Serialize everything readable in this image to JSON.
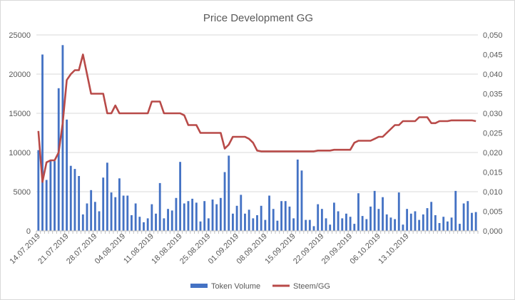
{
  "chart_data": {
    "type": "bar",
    "title": "Price Development GG",
    "xlabel": "",
    "ylabel": "",
    "ylim": [
      0,
      25000
    ],
    "y2lim": [
      0,
      0.05
    ],
    "y_ticks": [
      "0",
      "5000",
      "10000",
      "15000",
      "20000",
      "25000"
    ],
    "y2_ticks": [
      "0,000",
      "0,005",
      "0,010",
      "0,015",
      "0,020",
      "0,025",
      "0,030",
      "0,035",
      "0,040",
      "0,045",
      "0,050"
    ],
    "x_tick_labels": [
      "14.07.2019",
      "21.07.2019",
      "28.07.2019",
      "04.08.2019",
      "11.08.2019",
      "18.08.2019",
      "25.08.2019",
      "01.09.2019",
      "08.09.2019",
      "15.09.2019",
      "22.09.2019",
      "29.09.2019",
      "06.10.2019",
      "13.10.2019"
    ],
    "x_tick_every": 7,
    "start_date": "14.07.2019",
    "grid": true,
    "legend_position": "bottom",
    "colors": {
      "bars": "#4472c4",
      "line": "#b84a48",
      "grid": "#d9d9d9",
      "axis": "#bfbfbf",
      "text": "#595959"
    },
    "series": [
      {
        "name": "Token Volume",
        "kind": "bar",
        "axis": "left",
        "values": [
          10300,
          22500,
          6500,
          9000,
          8900,
          18200,
          23700,
          14200,
          8300,
          7900,
          7000,
          2100,
          3500,
          5200,
          3700,
          2500,
          6800,
          8700,
          4900,
          4300,
          6700,
          4500,
          4500,
          2000,
          3500,
          1800,
          1100,
          1600,
          3400,
          2200,
          6100,
          1600,
          2800,
          2600,
          4200,
          8800,
          3500,
          3800,
          4100,
          3600,
          1200,
          3800,
          1600,
          4000,
          3400,
          4200,
          7500,
          9600,
          2200,
          3200,
          4600,
          2200,
          2700,
          1600,
          2000,
          3200,
          1400,
          4500,
          2800,
          1300,
          3800,
          3800,
          3100,
          1600,
          9100,
          7700,
          1400,
          1400,
          600,
          3400,
          2800,
          1600,
          800,
          3600,
          2500,
          1600,
          2200,
          1800,
          900,
          4800,
          1900,
          1500,
          3100,
          5100,
          2800,
          4300,
          2100,
          1700,
          1500,
          4900,
          800,
          2800,
          2200,
          2500,
          1400,
          2100,
          2900,
          3700,
          2000,
          1000,
          1800,
          1200,
          1700,
          5100,
          900,
          3500,
          3800,
          2300,
          2400
        ]
      },
      {
        "name": "Steem/GG",
        "kind": "line",
        "axis": "right",
        "values": [
          0.0255,
          0.0125,
          0.0175,
          0.018,
          0.018,
          0.02,
          0.0275,
          0.0385,
          0.04,
          0.041,
          0.041,
          0.045,
          0.04,
          0.035,
          0.035,
          0.035,
          0.035,
          0.03,
          0.03,
          0.032,
          0.03,
          0.03,
          0.03,
          0.03,
          0.03,
          0.03,
          0.03,
          0.03,
          0.033,
          0.033,
          0.033,
          0.03,
          0.03,
          0.03,
          0.03,
          0.03,
          0.0295,
          0.027,
          0.027,
          0.027,
          0.025,
          0.025,
          0.025,
          0.025,
          0.025,
          0.025,
          0.021,
          0.022,
          0.024,
          0.024,
          0.024,
          0.024,
          0.0235,
          0.0225,
          0.0205,
          0.0203,
          0.0203,
          0.0203,
          0.0203,
          0.0203,
          0.0203,
          0.0203,
          0.0203,
          0.0203,
          0.0203,
          0.0203,
          0.0203,
          0.0203,
          0.0203,
          0.0205,
          0.0205,
          0.0205,
          0.0205,
          0.0207,
          0.0207,
          0.0207,
          0.0207,
          0.0207,
          0.0225,
          0.023,
          0.023,
          0.023,
          0.023,
          0.0235,
          0.024,
          0.024,
          0.025,
          0.026,
          0.027,
          0.027,
          0.028,
          0.028,
          0.028,
          0.028,
          0.029,
          0.029,
          0.029,
          0.0275,
          0.0275,
          0.028,
          0.028,
          0.028,
          0.0282,
          0.0282,
          0.0282,
          0.0282,
          0.0282,
          0.0282,
          0.028
        ]
      }
    ]
  }
}
